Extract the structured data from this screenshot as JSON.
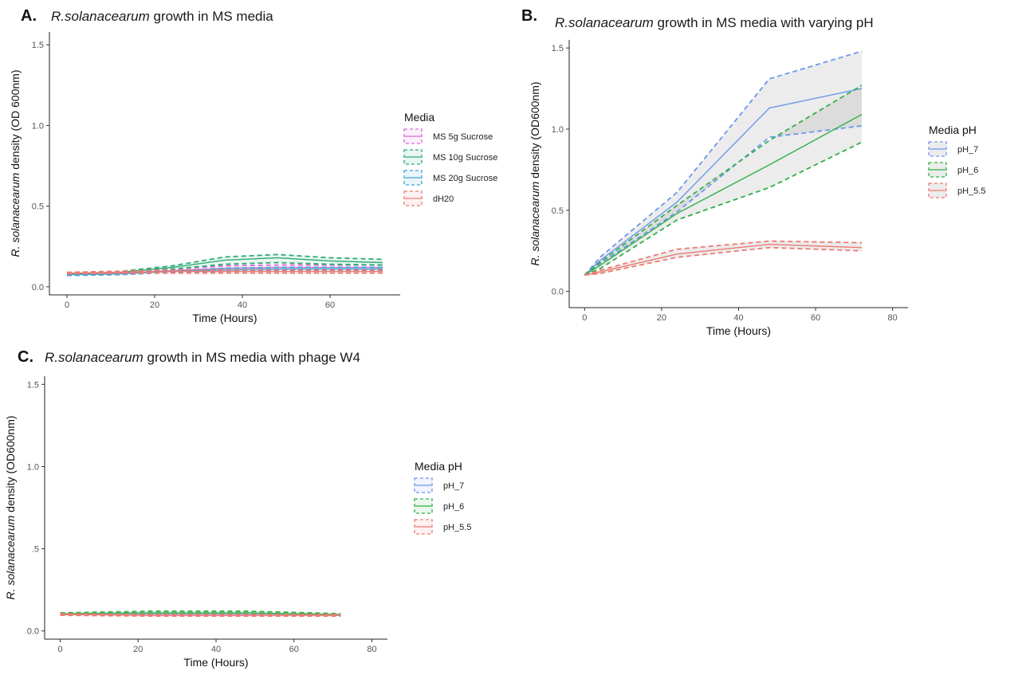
{
  "chart_data": [
    {
      "type": "line",
      "panel_label": "A.",
      "title_italic": "R.solanacearum",
      "title_rest": " growth in MS media",
      "xlabel": "Time (Hours)",
      "ylabel_italic": "R. solanacearum",
      "ylabel_rest": " density (OD 600nm)",
      "xlim": [
        -4,
        76
      ],
      "ylim": [
        -0.05,
        1.58
      ],
      "xticks": [
        0,
        20,
        40,
        60
      ],
      "yticks": [
        0.0,
        0.5,
        1.0,
        1.5
      ],
      "ytick_labels": [
        "0.0",
        "0.5",
        "1.0",
        "1.5"
      ],
      "grid": false,
      "legend": {
        "title": "Media",
        "position": "right"
      },
      "series": [
        {
          "name": "MS 5g Sucrose",
          "color": "#d66ad6",
          "x": [
            0,
            12,
            24,
            36,
            48,
            60,
            72
          ],
          "y": [
            0.08,
            0.085,
            0.1,
            0.115,
            0.12,
            0.12,
            0.12
          ],
          "lower": [
            0.075,
            0.08,
            0.09,
            0.1,
            0.105,
            0.105,
            0.105
          ],
          "upper": [
            0.085,
            0.09,
            0.11,
            0.13,
            0.135,
            0.135,
            0.135
          ]
        },
        {
          "name": "MS 10g Sucrose",
          "color": "#2aab73",
          "x": [
            0,
            12,
            24,
            36,
            48,
            60,
            72
          ],
          "y": [
            0.08,
            0.09,
            0.12,
            0.165,
            0.18,
            0.16,
            0.15
          ],
          "lower": [
            0.075,
            0.085,
            0.11,
            0.14,
            0.15,
            0.14,
            0.135
          ],
          "upper": [
            0.085,
            0.095,
            0.13,
            0.185,
            0.2,
            0.18,
            0.17
          ]
        },
        {
          "name": "MS 20g Sucrose",
          "color": "#3fa4d8",
          "x": [
            0,
            12,
            24,
            36,
            48,
            60,
            72
          ],
          "y": [
            0.075,
            0.08,
            0.095,
            0.105,
            0.11,
            0.11,
            0.11
          ],
          "lower": [
            0.07,
            0.075,
            0.09,
            0.095,
            0.1,
            0.1,
            0.1
          ],
          "upper": [
            0.08,
            0.085,
            0.1,
            0.115,
            0.12,
            0.12,
            0.12
          ]
        },
        {
          "name": "dH20",
          "color": "#ee7b72",
          "x": [
            0,
            12,
            24,
            36,
            48,
            60,
            72
          ],
          "y": [
            0.085,
            0.09,
            0.095,
            0.095,
            0.095,
            0.095,
            0.095
          ],
          "lower": [
            0.08,
            0.083,
            0.085,
            0.085,
            0.085,
            0.085,
            0.085
          ],
          "upper": [
            0.09,
            0.097,
            0.105,
            0.105,
            0.105,
            0.105,
            0.105
          ]
        }
      ]
    },
    {
      "type": "line",
      "panel_label": "B.",
      "title_italic": "R.solanacearum",
      "title_rest": " growth in MS media with varying pH",
      "xlabel": "Time (Hours)",
      "ylabel_italic": "R. solanacearum",
      "ylabel_rest": " density (OD600nm)",
      "xlim": [
        -4,
        84
      ],
      "ylim": [
        -0.1,
        1.55
      ],
      "xticks": [
        0,
        20,
        40,
        60,
        80
      ],
      "yticks": [
        0.0,
        0.5,
        1.0,
        1.5
      ],
      "ytick_labels": [
        "0.0",
        "0.5",
        "1.0",
        "1.5"
      ],
      "grid": false,
      "legend": {
        "title": "Media pH",
        "position": "right"
      },
      "series": [
        {
          "name": "pH_7",
          "color": "#6c97ea",
          "x": [
            0,
            4,
            24,
            48,
            72
          ],
          "y": [
            0.1,
            0.19,
            0.55,
            1.13,
            1.25
          ],
          "lower": [
            0.1,
            0.17,
            0.49,
            0.95,
            1.02
          ],
          "upper": [
            0.1,
            0.21,
            0.61,
            1.31,
            1.48
          ]
        },
        {
          "name": "pH_6",
          "color": "#33b04a",
          "x": [
            0,
            4,
            24,
            48,
            72
          ],
          "y": [
            0.1,
            0.16,
            0.48,
            0.78,
            1.09
          ],
          "lower": [
            0.1,
            0.14,
            0.44,
            0.64,
            0.92
          ],
          "upper": [
            0.1,
            0.18,
            0.53,
            0.93,
            1.27
          ]
        },
        {
          "name": "pH_5.5",
          "color": "#ee7b72",
          "x": [
            0,
            4,
            24,
            48,
            72
          ],
          "y": [
            0.1,
            0.12,
            0.23,
            0.29,
            0.27
          ],
          "lower": [
            0.1,
            0.11,
            0.21,
            0.27,
            0.25
          ],
          "upper": [
            0.1,
            0.13,
            0.26,
            0.31,
            0.3
          ]
        }
      ]
    },
    {
      "type": "line",
      "panel_label": "C.",
      "title_italic": "R.solanacearum",
      "title_rest": " growth in MS media with phage W4",
      "xlabel": "Time (Hours)",
      "ylabel_italic": "R. solanacearum",
      "ylabel_rest": " density (OD600nm)",
      "xlim": [
        -4,
        84
      ],
      "ylim": [
        -0.05,
        1.55
      ],
      "xticks": [
        0,
        20,
        40,
        60,
        80
      ],
      "yticks": [
        0.0,
        0.5,
        1.0,
        1.5
      ],
      "ytick_labels": [
        "0.0",
        ".5",
        "1.0",
        "1.5"
      ],
      "grid": false,
      "legend": {
        "title": "Media pH",
        "position": "right"
      },
      "series": [
        {
          "name": "pH_7",
          "color": "#6c97ea",
          "x": [
            0,
            24,
            48,
            72
          ],
          "y": [
            0.1,
            0.1,
            0.1,
            0.095
          ],
          "lower": [
            0.095,
            0.095,
            0.095,
            0.09
          ],
          "upper": [
            0.105,
            0.105,
            0.105,
            0.1
          ]
        },
        {
          "name": "pH_6",
          "color": "#33b04a",
          "x": [
            0,
            24,
            48,
            72
          ],
          "y": [
            0.105,
            0.11,
            0.11,
            0.1
          ],
          "lower": [
            0.1,
            0.1,
            0.1,
            0.095
          ],
          "upper": [
            0.11,
            0.12,
            0.12,
            0.105
          ]
        },
        {
          "name": "pH_5.5",
          "color": "#ee7b72",
          "x": [
            0,
            24,
            48,
            72
          ],
          "y": [
            0.1,
            0.095,
            0.095,
            0.095
          ],
          "lower": [
            0.095,
            0.09,
            0.09,
            0.09
          ],
          "upper": [
            0.105,
            0.1,
            0.1,
            0.1
          ]
        }
      ]
    }
  ]
}
